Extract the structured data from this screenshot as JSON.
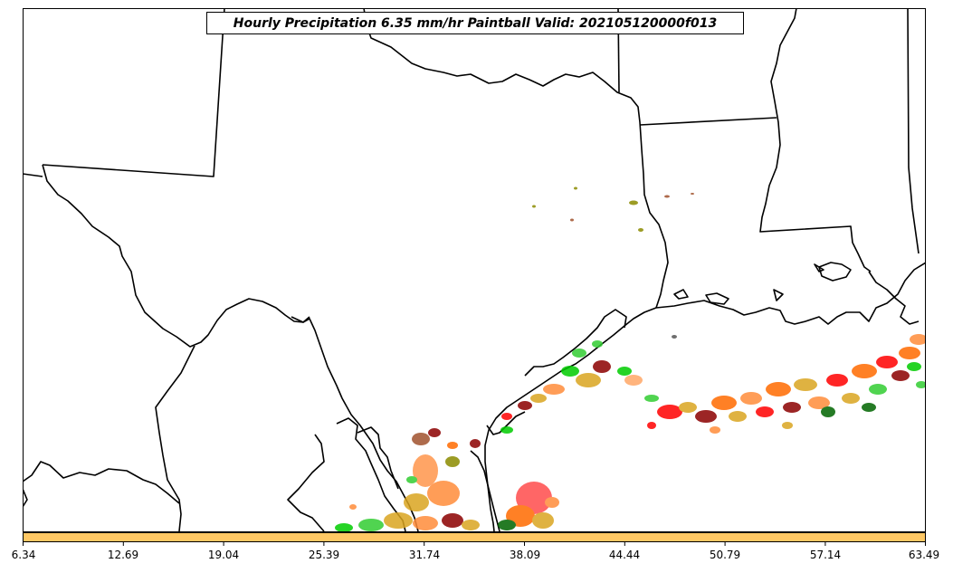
{
  "title": "Hourly Precipitation 6.35 mm/hr Paintball Valid: 202105120000f013",
  "colors": {
    "colorbar_fill": "#FFC864",
    "boundary": "#000000",
    "ensemble_member_colors": [
      "#FF6A00",
      "#FF8C3A",
      "#FF0000",
      "#B22222",
      "#8B0000",
      "#00CC00",
      "#32CD32",
      "#006400",
      "#DAA520",
      "#FFA500",
      "#A0522D",
      "#8B8B00"
    ]
  },
  "colorbar": {
    "tick_labels": [
      "6.34",
      "12.69",
      "19.04",
      "25.39",
      "31.74",
      "38.09",
      "44.44",
      "50.79",
      "57.14",
      "63.49"
    ]
  },
  "map": {
    "region": "south-central-us-and-gulf-coast",
    "features": [
      "state-boundaries",
      "coastline",
      "precipitation-paintball-blobs"
    ]
  }
}
